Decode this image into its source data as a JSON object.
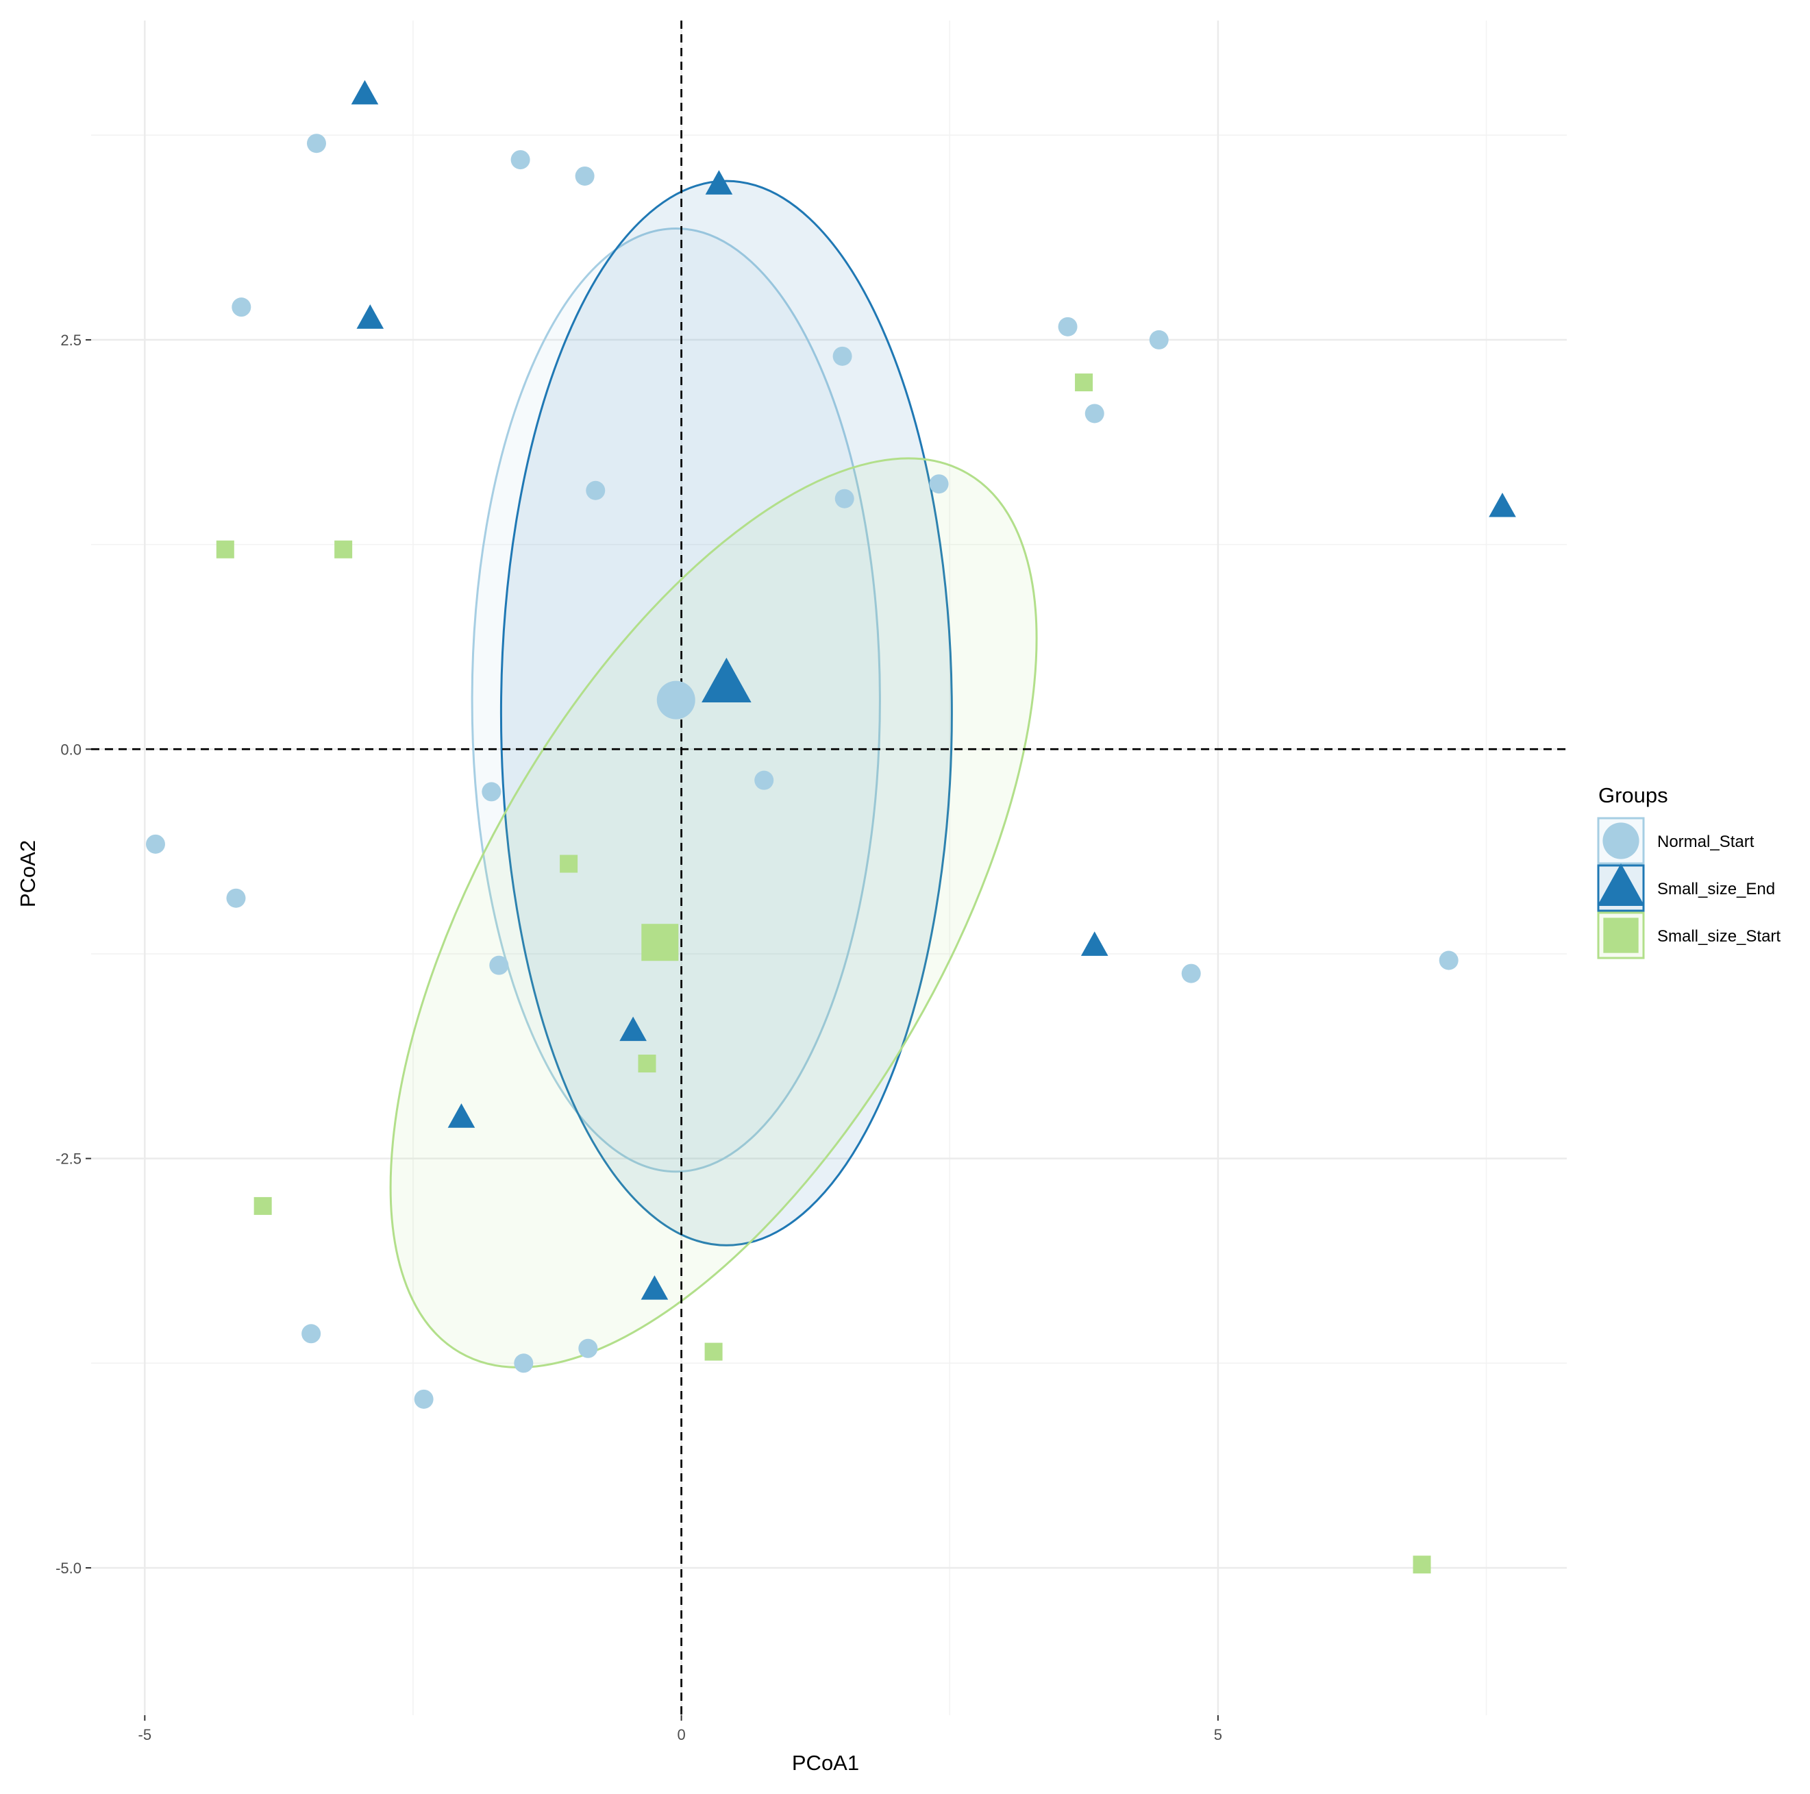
{
  "chart_data": {
    "type": "scatter",
    "xlabel": "PCoA1",
    "ylabel": "PCoA2",
    "xlim": [
      -5.5,
      8.25
    ],
    "ylim": [
      -5.9,
      4.45
    ],
    "x_ticks": [
      -5,
      0,
      5
    ],
    "x_tick_labels": [
      "-5",
      "0",
      "5"
    ],
    "y_ticks": [
      -5,
      -2.5,
      0,
      2.5
    ],
    "y_tick_labels": [
      "-5.0",
      "-2.5",
      "0.0",
      "2.5"
    ],
    "grid": true,
    "reference_lines": {
      "x": 0,
      "y": 0,
      "style": "dashed"
    },
    "legend": {
      "title": "Groups",
      "position": "right"
    },
    "series": [
      {
        "name": "Normal_Start",
        "marker": "circle",
        "color": "#a6cee3",
        "points": [
          [
            -3.4,
            3.7
          ],
          [
            -1.5,
            3.6
          ],
          [
            -0.9,
            3.5
          ],
          [
            -4.1,
            2.7
          ],
          [
            3.6,
            2.58
          ],
          [
            4.45,
            2.5
          ],
          [
            1.5,
            2.4
          ],
          [
            3.85,
            2.05
          ],
          [
            -0.8,
            1.58
          ],
          [
            1.52,
            1.53
          ],
          [
            2.4,
            1.62
          ],
          [
            0.77,
            -0.19
          ],
          [
            -1.77,
            -0.26
          ],
          [
            -4.9,
            -0.58
          ],
          [
            -4.15,
            -0.91
          ],
          [
            -1.7,
            -1.32
          ],
          [
            4.75,
            -1.37
          ],
          [
            7.15,
            -1.29
          ],
          [
            -3.45,
            -3.57
          ],
          [
            -0.87,
            -3.66
          ],
          [
            -1.47,
            -3.75
          ],
          [
            -2.4,
            -3.97
          ]
        ],
        "centroid": [
          -0.05,
          0.3
        ],
        "ellipse": {
          "cx": -0.05,
          "cy": 0.3,
          "rx": 1.9,
          "ry": 2.88,
          "angle": 0
        }
      },
      {
        "name": "Small_size_End",
        "marker": "triangle",
        "color": "#1f78b4",
        "points": [
          [
            -2.95,
            4.0
          ],
          [
            0.35,
            3.45
          ],
          [
            -2.9,
            2.63
          ],
          [
            7.65,
            1.48
          ],
          [
            3.85,
            -1.2
          ],
          [
            -0.45,
            -1.72
          ],
          [
            -2.05,
            -2.25
          ],
          [
            -0.25,
            -3.3
          ]
        ],
        "centroid": [
          0.42,
          0.4
        ],
        "ellipse": {
          "cx": 0.42,
          "cy": 0.22,
          "rx": 2.1,
          "ry": 3.25,
          "angle": 0
        }
      },
      {
        "name": "Small_size_Start",
        "marker": "square",
        "color": "#b2df8a",
        "points": [
          [
            3.75,
            2.24
          ],
          [
            -4.25,
            1.22
          ],
          [
            -3.15,
            1.22
          ],
          [
            -1.05,
            -0.7
          ],
          [
            -0.32,
            -1.92
          ],
          [
            -3.9,
            -2.79
          ],
          [
            0.3,
            -3.68
          ],
          [
            6.9,
            -4.98
          ]
        ],
        "centroid": [
          -0.2,
          -1.18
        ],
        "ellipse": {
          "cx": 0.3,
          "cy": -1.0,
          "rx": 2.15,
          "ry": 3.1,
          "angle": 30
        }
      }
    ]
  }
}
